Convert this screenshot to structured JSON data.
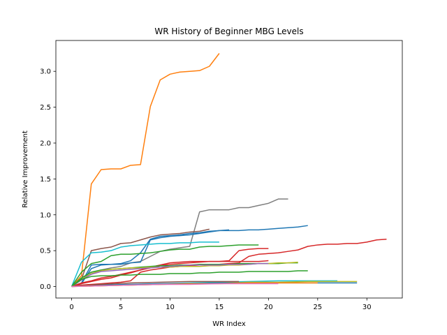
{
  "chart_data": {
    "type": "line",
    "title": "WR History of Beginner MBG Levels",
    "xlabel": "WR Index",
    "ylabel": "Relative Improvement",
    "xlim": [
      -1.6,
      33.6
    ],
    "ylim": [
      -0.16,
      3.43
    ],
    "xticks": [
      0,
      5,
      10,
      15,
      20,
      25,
      30
    ],
    "yticks": [
      0.0,
      0.5,
      1.0,
      1.5,
      2.0,
      2.5,
      3.0
    ],
    "xtick_labels": [
      "0",
      "5",
      "10",
      "15",
      "20",
      "25",
      "30"
    ],
    "ytick_labels": [
      "0.0",
      "0.5",
      "1.0",
      "1.5",
      "2.0",
      "2.5",
      "3.0"
    ],
    "grid": false,
    "legend": "none",
    "series": [
      {
        "color": "#ff7f0e",
        "x": [
          0,
          1,
          2,
          3,
          4,
          5,
          6,
          7,
          8,
          9,
          10,
          11,
          12,
          13,
          14,
          15
        ],
        "y": [
          0,
          0.15,
          1.43,
          1.63,
          1.64,
          1.64,
          1.69,
          1.7,
          2.51,
          2.88,
          2.96,
          2.99,
          3.0,
          3.01,
          3.07,
          3.25
        ]
      },
      {
        "color": "#7f7f7f",
        "x": [
          0,
          1,
          2,
          3,
          4,
          5,
          6,
          7,
          8,
          9,
          10,
          11,
          12,
          13,
          14,
          15,
          16,
          17,
          18,
          19,
          20,
          21,
          22
        ],
        "y": [
          0,
          0.12,
          0.2,
          0.23,
          0.26,
          0.28,
          0.33,
          0.35,
          0.42,
          0.49,
          0.52,
          0.54,
          0.56,
          1.04,
          1.07,
          1.07,
          1.07,
          1.1,
          1.1,
          1.13,
          1.16,
          1.22,
          1.22
        ]
      },
      {
        "color": "#8c564b",
        "x": [
          0,
          1,
          2,
          3,
          4,
          5,
          6,
          7,
          8,
          9,
          10,
          11,
          12,
          13,
          14
        ],
        "y": [
          0,
          0.1,
          0.5,
          0.53,
          0.55,
          0.6,
          0.61,
          0.65,
          0.69,
          0.72,
          0.73,
          0.74,
          0.76,
          0.77,
          0.8
        ]
      },
      {
        "color": "#1f77b4",
        "x": [
          0,
          1,
          2,
          3,
          4,
          5,
          6,
          7,
          8,
          9,
          10,
          11,
          12,
          13,
          14,
          15,
          16,
          17,
          18,
          19,
          20,
          21,
          22,
          23,
          24
        ],
        "y": [
          0,
          0.05,
          0.3,
          0.31,
          0.31,
          0.32,
          0.36,
          0.47,
          0.66,
          0.7,
          0.71,
          0.72,
          0.74,
          0.75,
          0.77,
          0.78,
          0.78,
          0.78,
          0.79,
          0.79,
          0.8,
          0.81,
          0.82,
          0.83,
          0.85
        ]
      },
      {
        "color": "#1f77b4",
        "x": [
          0,
          1,
          2,
          3,
          4,
          5,
          6,
          7,
          8,
          9,
          10,
          11,
          12,
          13,
          14,
          15,
          16
        ],
        "y": [
          0,
          0.04,
          0.25,
          0.3,
          0.31,
          0.31,
          0.33,
          0.34,
          0.65,
          0.68,
          0.7,
          0.71,
          0.72,
          0.74,
          0.76,
          0.78,
          0.79
        ]
      },
      {
        "color": "#17becf",
        "x": [
          0,
          1,
          2,
          3,
          4,
          5,
          6,
          7,
          8,
          9,
          10,
          11,
          12,
          13,
          14,
          15
        ],
        "y": [
          0,
          0.34,
          0.47,
          0.48,
          0.5,
          0.55,
          0.57,
          0.58,
          0.59,
          0.6,
          0.6,
          0.61,
          0.61,
          0.62,
          0.62,
          0.62
        ]
      },
      {
        "color": "#2ca02c",
        "x": [
          0,
          1,
          2,
          3,
          4,
          5,
          6,
          7,
          8,
          9,
          10,
          11,
          12,
          13,
          14,
          15,
          16,
          17,
          18,
          19
        ],
        "y": [
          0,
          0.2,
          0.32,
          0.35,
          0.43,
          0.45,
          0.45,
          0.46,
          0.47,
          0.49,
          0.51,
          0.52,
          0.52,
          0.55,
          0.56,
          0.56,
          0.57,
          0.58,
          0.58,
          0.58
        ]
      },
      {
        "color": "#d62728",
        "x": [
          0,
          1,
          2,
          3,
          4,
          5,
          6,
          7,
          8,
          9,
          10,
          11,
          12,
          13,
          14,
          15,
          16,
          17,
          18,
          19,
          20,
          21,
          22,
          23,
          24,
          25,
          26,
          27,
          28,
          29,
          30,
          31,
          32
        ],
        "y": [
          0,
          0.02,
          0.03,
          0.04,
          0.05,
          0.06,
          0.08,
          0.2,
          0.23,
          0.25,
          0.27,
          0.28,
          0.29,
          0.3,
          0.31,
          0.31,
          0.32,
          0.33,
          0.42,
          0.45,
          0.46,
          0.47,
          0.49,
          0.51,
          0.56,
          0.58,
          0.59,
          0.59,
          0.6,
          0.6,
          0.62,
          0.65,
          0.66
        ]
      },
      {
        "color": "#d62728",
        "x": [
          0,
          1,
          2,
          3,
          4,
          5,
          6,
          7,
          8,
          9,
          10,
          11,
          12,
          13,
          14,
          15,
          16,
          17,
          18,
          19,
          20
        ],
        "y": [
          0,
          0.05,
          0.08,
          0.12,
          0.14,
          0.17,
          0.2,
          0.23,
          0.26,
          0.29,
          0.31,
          0.32,
          0.33,
          0.34,
          0.35,
          0.35,
          0.36,
          0.5,
          0.52,
          0.53,
          0.53
        ]
      },
      {
        "color": "#d62728",
        "x": [
          0,
          1,
          2,
          3,
          4,
          5,
          6,
          7,
          8,
          9,
          10,
          11,
          12,
          13,
          14,
          15,
          16,
          17,
          18,
          19,
          20
        ],
        "y": [
          0,
          0.04,
          0.07,
          0.1,
          0.12,
          0.16,
          0.19,
          0.23,
          0.27,
          0.3,
          0.33,
          0.34,
          0.35,
          0.35,
          0.35,
          0.35,
          0.35,
          0.35,
          0.35,
          0.35,
          0.36
        ]
      },
      {
        "color": "#2ca02c",
        "x": [
          0,
          1,
          2,
          3,
          4,
          5,
          6,
          7,
          8,
          9,
          10,
          11,
          12,
          13,
          14,
          15,
          16,
          17,
          18,
          19,
          20,
          21,
          22,
          23
        ],
        "y": [
          0,
          0.12,
          0.2,
          0.23,
          0.24,
          0.25,
          0.26,
          0.27,
          0.28,
          0.29,
          0.29,
          0.3,
          0.3,
          0.31,
          0.31,
          0.31,
          0.31,
          0.32,
          0.32,
          0.32,
          0.32,
          0.32,
          0.33,
          0.33
        ]
      },
      {
        "color": "#bcbd22",
        "x": [
          0,
          1,
          2,
          3,
          4,
          5,
          6,
          7,
          8,
          9,
          10,
          11,
          12,
          13,
          14,
          15,
          16,
          17,
          18,
          19,
          20,
          21,
          22,
          23
        ],
        "y": [
          0,
          0.1,
          0.18,
          0.22,
          0.24,
          0.25,
          0.26,
          0.26,
          0.27,
          0.27,
          0.27,
          0.28,
          0.28,
          0.28,
          0.29,
          0.29,
          0.3,
          0.3,
          0.31,
          0.32,
          0.32,
          0.33,
          0.33,
          0.34
        ]
      },
      {
        "color": "#9467bd",
        "x": [
          0,
          1,
          2,
          3,
          4,
          5,
          6,
          7,
          8,
          9,
          10,
          11,
          12,
          13,
          14,
          15,
          16,
          17,
          18,
          19,
          20
        ],
        "y": [
          0,
          0.09,
          0.17,
          0.21,
          0.22,
          0.23,
          0.24,
          0.25,
          0.26,
          0.27,
          0.28,
          0.29,
          0.3,
          0.3,
          0.3,
          0.3,
          0.31,
          0.31,
          0.31,
          0.32,
          0.32
        ]
      },
      {
        "color": "#2ca02c",
        "x": [
          0,
          1,
          2,
          3,
          4,
          5,
          6,
          7,
          8,
          9,
          10,
          11,
          12,
          13,
          14,
          15,
          16,
          17,
          18,
          19,
          20,
          21,
          22,
          23,
          24
        ],
        "y": [
          0,
          0.1,
          0.14,
          0.15,
          0.15,
          0.16,
          0.16,
          0.17,
          0.17,
          0.17,
          0.18,
          0.18,
          0.18,
          0.19,
          0.19,
          0.2,
          0.2,
          0.2,
          0.21,
          0.21,
          0.21,
          0.21,
          0.21,
          0.22,
          0.22
        ]
      },
      {
        "color": "#17becf",
        "x": [
          0,
          3,
          6,
          9,
          12,
          15,
          18,
          21,
          24,
          27
        ],
        "y": [
          0,
          0.02,
          0.03,
          0.04,
          0.05,
          0.06,
          0.07,
          0.08,
          0.08,
          0.08
        ]
      },
      {
        "color": "#bcbd22",
        "x": [
          0,
          3,
          6,
          9,
          12,
          15,
          18,
          21,
          24,
          27,
          29
        ],
        "y": [
          0,
          0.01,
          0.02,
          0.03,
          0.04,
          0.05,
          0.06,
          0.06,
          0.07,
          0.07,
          0.07
        ]
      },
      {
        "color": "#1f77b4",
        "x": [
          0,
          3,
          6,
          9,
          12,
          15,
          18,
          21,
          24,
          29
        ],
        "y": [
          0,
          0.02,
          0.03,
          0.04,
          0.04,
          0.05,
          0.05,
          0.05,
          0.05,
          0.05
        ]
      },
      {
        "color": "#8c564b",
        "x": [
          0,
          3,
          6,
          9,
          12,
          15,
          17
        ],
        "y": [
          0,
          0.03,
          0.05,
          0.06,
          0.07,
          0.07,
          0.07
        ]
      },
      {
        "color": "#ff7f0e",
        "x": [
          0,
          3,
          6,
          9,
          12,
          15,
          18,
          21,
          25
        ],
        "y": [
          0,
          0.01,
          0.02,
          0.03,
          0.04,
          0.04,
          0.05,
          0.05,
          0.05
        ]
      },
      {
        "color": "#e377c2",
        "x": [
          0,
          3,
          6,
          9,
          12,
          15,
          18,
          21
        ],
        "y": [
          0,
          0.01,
          0.02,
          0.03,
          0.03,
          0.04,
          0.04,
          0.04
        ]
      }
    ]
  }
}
